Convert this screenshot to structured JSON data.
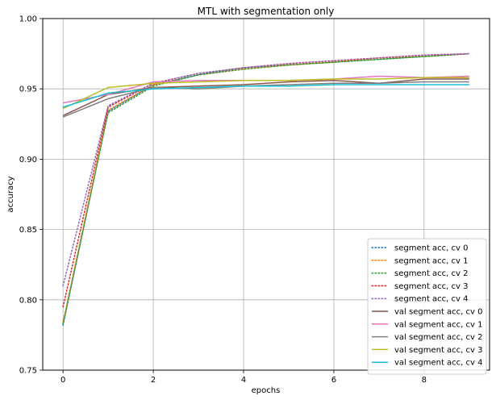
{
  "chart_data": {
    "type": "line",
    "title": "MTL with segmentation only",
    "xlabel": "epochs",
    "ylabel": "accuracy",
    "xlim": [
      -0.45,
      9.45
    ],
    "ylim": [
      0.75,
      1.0
    ],
    "xticks": [
      0,
      2,
      4,
      6,
      8
    ],
    "xtick_labels": [
      "0",
      "2",
      "4",
      "6",
      "8"
    ],
    "yticks": [
      0.75,
      0.8,
      0.85,
      0.9,
      0.95,
      1.0
    ],
    "ytick_labels": [
      "0.75",
      "0.80",
      "0.85",
      "0.90",
      "0.95",
      "1.00"
    ],
    "grid": true,
    "legend_position": "lower-right",
    "x": [
      0,
      1,
      2,
      3,
      4,
      5,
      6,
      7,
      8,
      9
    ],
    "series": [
      {
        "name": "segment acc, cv 0",
        "style": "dotted",
        "color": "#1f77b4",
        "values": [
          0.782,
          0.934,
          0.953,
          0.96,
          0.965,
          0.967,
          0.969,
          0.971,
          0.973,
          0.975
        ]
      },
      {
        "name": "segment acc, cv 1",
        "style": "dotted",
        "color": "#ff7f0e",
        "values": [
          0.784,
          0.935,
          0.953,
          0.96,
          0.964,
          0.967,
          0.969,
          0.972,
          0.973,
          0.975
        ]
      },
      {
        "name": "segment acc, cv 2",
        "style": "dotted",
        "color": "#2ca02c",
        "values": [
          0.783,
          0.933,
          0.952,
          0.96,
          0.964,
          0.967,
          0.969,
          0.971,
          0.973,
          0.975
        ]
      },
      {
        "name": "segment acc, cv 3",
        "style": "dotted",
        "color": "#d62728",
        "values": [
          0.795,
          0.937,
          0.954,
          0.961,
          0.965,
          0.968,
          0.97,
          0.972,
          0.974,
          0.975
        ]
      },
      {
        "name": "segment acc, cv 4",
        "style": "dotted",
        "color": "#9467bd",
        "values": [
          0.81,
          0.938,
          0.954,
          0.961,
          0.965,
          0.968,
          0.97,
          0.972,
          0.974,
          0.975
        ]
      },
      {
        "name": "val segment acc, cv 0",
        "style": "solid",
        "color": "#8c564b",
        "values": [
          0.931,
          0.946,
          0.951,
          0.952,
          0.953,
          0.955,
          0.956,
          0.954,
          0.957,
          0.957
        ]
      },
      {
        "name": "val segment acc, cv 1",
        "style": "solid",
        "color": "#e377c2",
        "values": [
          0.94,
          0.946,
          0.955,
          0.956,
          0.956,
          0.956,
          0.957,
          0.959,
          0.958,
          0.959
        ]
      },
      {
        "name": "val segment acc, cv 2",
        "style": "solid",
        "color": "#7f7f7f",
        "values": [
          0.93,
          0.943,
          0.951,
          0.95,
          0.952,
          0.953,
          0.954,
          0.954,
          0.955,
          0.955
        ]
      },
      {
        "name": "val segment acc, cv 3",
        "style": "solid",
        "color": "#bcbd22",
        "values": [
          0.936,
          0.951,
          0.954,
          0.955,
          0.956,
          0.956,
          0.957,
          0.957,
          0.958,
          0.958
        ]
      },
      {
        "name": "val segment acc, cv 4",
        "style": "solid",
        "color": "#17becf",
        "values": [
          0.937,
          0.947,
          0.95,
          0.951,
          0.952,
          0.952,
          0.953,
          0.953,
          0.953,
          0.953
        ]
      }
    ]
  }
}
